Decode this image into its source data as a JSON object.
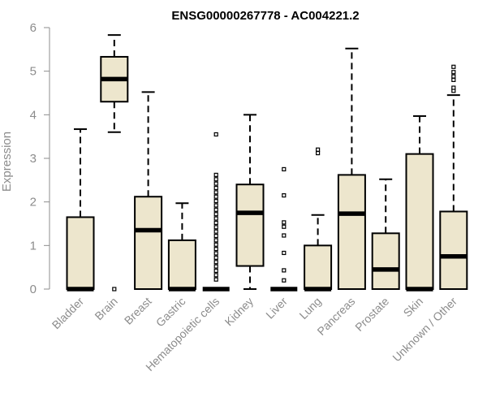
{
  "chart_data": {
    "type": "box",
    "title": "ENSG00000267778 - AC004221.2",
    "ylabel": "Expression",
    "xlabel": "",
    "ylim": [
      0,
      6
    ],
    "yticks": [
      "0",
      "1",
      "2",
      "3",
      "4",
      "5",
      "6"
    ],
    "box_fill": "#ede6cd",
    "box_stroke": "#000000",
    "axis_color": "#8c8c8c",
    "categories": [
      "Bladder",
      "Brain",
      "Breast",
      "Gastric",
      "Hematopoietic cells",
      "Kidney",
      "Liver",
      "Lung",
      "Pancreas",
      "Prostate",
      "Skin",
      "Unknown / Other"
    ],
    "boxes": [
      {
        "min": 0,
        "q1": 0,
        "median": 0,
        "q3": 1.65,
        "max": 3.67,
        "outliers": []
      },
      {
        "min": 3.6,
        "q1": 4.3,
        "median": 4.82,
        "q3": 5.33,
        "max": 5.83,
        "outliers": [
          0
        ]
      },
      {
        "min": 0,
        "q1": 0,
        "median": 1.35,
        "q3": 2.12,
        "max": 4.52,
        "outliers": []
      },
      {
        "min": 0,
        "q1": 0,
        "median": 0,
        "q3": 1.12,
        "max": 1.97,
        "outliers": []
      },
      {
        "min": 0,
        "q1": 0,
        "median": 0,
        "q3": 0,
        "max": 0,
        "outliers": [
          0.22,
          0.32,
          0.42,
          0.52,
          0.62,
          0.72,
          0.82,
          0.92,
          1.02,
          1.12,
          1.22,
          1.32,
          1.42,
          1.52,
          1.62,
          1.72,
          1.82,
          1.92,
          2.02,
          2.12,
          2.22,
          2.32,
          2.42,
          2.52,
          2.62,
          3.55
        ]
      },
      {
        "min": 0,
        "q1": 0.53,
        "median": 1.75,
        "q3": 2.4,
        "max": 4.0,
        "outliers": []
      },
      {
        "min": 0,
        "q1": 0,
        "median": 0,
        "q3": 0,
        "max": 0,
        "outliers": [
          0.2,
          0.43,
          0.83,
          1.23,
          1.43,
          1.53,
          2.15,
          2.75
        ]
      },
      {
        "min": 0,
        "q1": 0,
        "median": 0,
        "q3": 1.0,
        "max": 1.7,
        "outliers": [
          3.12,
          3.2
        ]
      },
      {
        "min": 0,
        "q1": 0,
        "median": 1.73,
        "q3": 2.62,
        "max": 5.52,
        "outliers": []
      },
      {
        "min": 0,
        "q1": 0,
        "median": 0.45,
        "q3": 1.28,
        "max": 2.52,
        "outliers": []
      },
      {
        "min": 0,
        "q1": 0,
        "median": 0,
        "q3": 3.1,
        "max": 3.97,
        "outliers": []
      },
      {
        "min": 0,
        "q1": 0,
        "median": 0.75,
        "q3": 1.78,
        "max": 4.45,
        "outliers": [
          4.55,
          4.62,
          4.8,
          4.88,
          4.98,
          5.1
        ]
      }
    ]
  }
}
